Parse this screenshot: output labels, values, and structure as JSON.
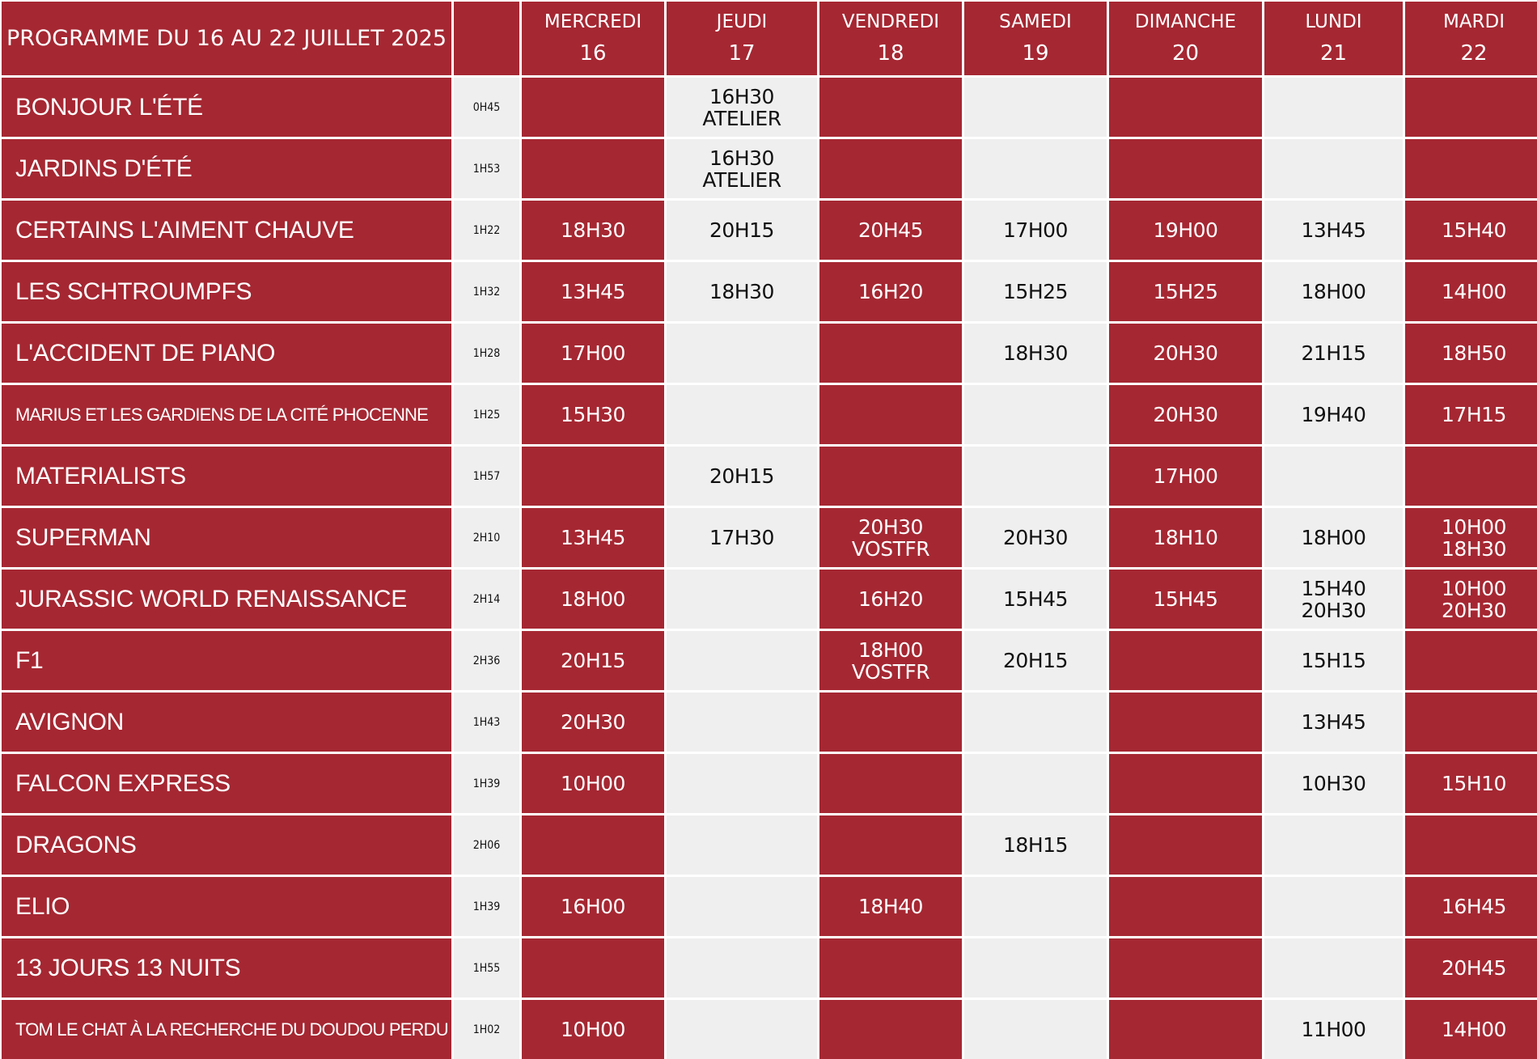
{
  "programme_title": "PROGRAMME DU 16 AU 22 JUILLET 2025",
  "days": [
    {
      "name": "MERCREDI",
      "num": "16"
    },
    {
      "name": "JEUDI",
      "num": "17"
    },
    {
      "name": "VENDREDI",
      "num": "18"
    },
    {
      "name": "SAMEDI",
      "num": "19"
    },
    {
      "name": "DIMANCHE",
      "num": "20"
    },
    {
      "name": "LUNDI",
      "num": "21"
    },
    {
      "name": "MARDI",
      "num": "22"
    }
  ],
  "films": [
    {
      "title": "BONJOUR L'ÉTÉ",
      "duration": "0H45",
      "times": [
        [],
        [
          "16H30",
          "ATELIER"
        ],
        [],
        [],
        [],
        [],
        []
      ]
    },
    {
      "title": "JARDINS D'ÉTÉ",
      "duration": "1H53",
      "times": [
        [],
        [
          "16H30",
          "ATELIER"
        ],
        [],
        [],
        [],
        [],
        []
      ]
    },
    {
      "title": "CERTAINS L'AIMENT CHAUVE",
      "duration": "1H22",
      "times": [
        [
          "18H30"
        ],
        [
          "20H15"
        ],
        [
          "20H45"
        ],
        [
          "17H00"
        ],
        [
          "19H00"
        ],
        [
          "13H45"
        ],
        [
          "15H40"
        ]
      ]
    },
    {
      "title": "LES SCHTROUMPFS",
      "duration": "1H32",
      "times": [
        [
          "13H45"
        ],
        [
          "18H30"
        ],
        [
          "16H20"
        ],
        [
          "15H25"
        ],
        [
          "15H25"
        ],
        [
          "18H00"
        ],
        [
          "14H00"
        ]
      ]
    },
    {
      "title": "L'ACCIDENT DE PIANO",
      "duration": "1H28",
      "times": [
        [
          "17H00"
        ],
        [],
        [],
        [
          "18H30"
        ],
        [
          "20H30"
        ],
        [
          "21H15"
        ],
        [
          "18H50"
        ]
      ]
    },
    {
      "title": "MARIUS ET LES GARDIENS DE LA CITÉ PHOCENNE",
      "duration": "1H25",
      "small": true,
      "times": [
        [
          "15H30"
        ],
        [],
        [],
        [],
        [
          "20H30"
        ],
        [
          "19H40"
        ],
        [
          "17H15"
        ]
      ]
    },
    {
      "title": "MATERIALISTS",
      "duration": "1H57",
      "times": [
        [],
        [
          "20H15"
        ],
        [],
        [],
        [
          "17H00"
        ],
        [],
        []
      ]
    },
    {
      "title": "SUPERMAN",
      "duration": "2H10",
      "times": [
        [
          "13H45"
        ],
        [
          "17H30"
        ],
        [
          "20H30",
          "VOSTFR"
        ],
        [
          "20H30"
        ],
        [
          "18H10"
        ],
        [
          "18H00"
        ],
        [
          "10H00",
          "18H30"
        ]
      ]
    },
    {
      "title": "JURASSIC WORLD RENAISSANCE",
      "duration": "2H14",
      "times": [
        [
          "18H00"
        ],
        [],
        [
          "16H20"
        ],
        [
          "15H45"
        ],
        [
          "15H45"
        ],
        [
          "15H40",
          "20H30"
        ],
        [
          "10H00",
          "20H30"
        ]
      ]
    },
    {
      "title": "F1",
      "duration": "2H36",
      "times": [
        [
          "20H15"
        ],
        [],
        [
          "18H00",
          "VOSTFR"
        ],
        [
          "20H15"
        ],
        [],
        [
          "15H15"
        ],
        []
      ]
    },
    {
      "title": "AVIGNON",
      "duration": "1H43",
      "times": [
        [
          "20H30"
        ],
        [],
        [],
        [],
        [],
        [
          "13H45"
        ],
        []
      ]
    },
    {
      "title": "FALCON EXPRESS",
      "duration": "1H39",
      "times": [
        [
          "10H00"
        ],
        [],
        [],
        [],
        [],
        [
          "10H30"
        ],
        [
          "15H10"
        ]
      ]
    },
    {
      "title": "DRAGONS",
      "duration": "2H06",
      "times": [
        [],
        [],
        [],
        [
          "18H15"
        ],
        [],
        [],
        []
      ]
    },
    {
      "title": "ELIO",
      "duration": "1H39",
      "times": [
        [
          "16H00"
        ],
        [],
        [
          "18H40"
        ],
        [],
        [],
        [],
        [
          "16H45"
        ]
      ]
    },
    {
      "title": "13 JOURS 13 NUITS",
      "duration": "1H55",
      "times": [
        [],
        [],
        [],
        [],
        [],
        [],
        [
          "20H45"
        ]
      ]
    },
    {
      "title": "TOM LE CHAT À LA RECHERCHE DU DOUDOU PERDU",
      "duration": "1H02",
      "small": true,
      "times": [
        [
          "10H00"
        ],
        [],
        [],
        [],
        [],
        [
          "11H00"
        ],
        [
          "14H00"
        ]
      ]
    }
  ],
  "colors": {
    "red": "#a52732",
    "grey": "#efefef"
  }
}
